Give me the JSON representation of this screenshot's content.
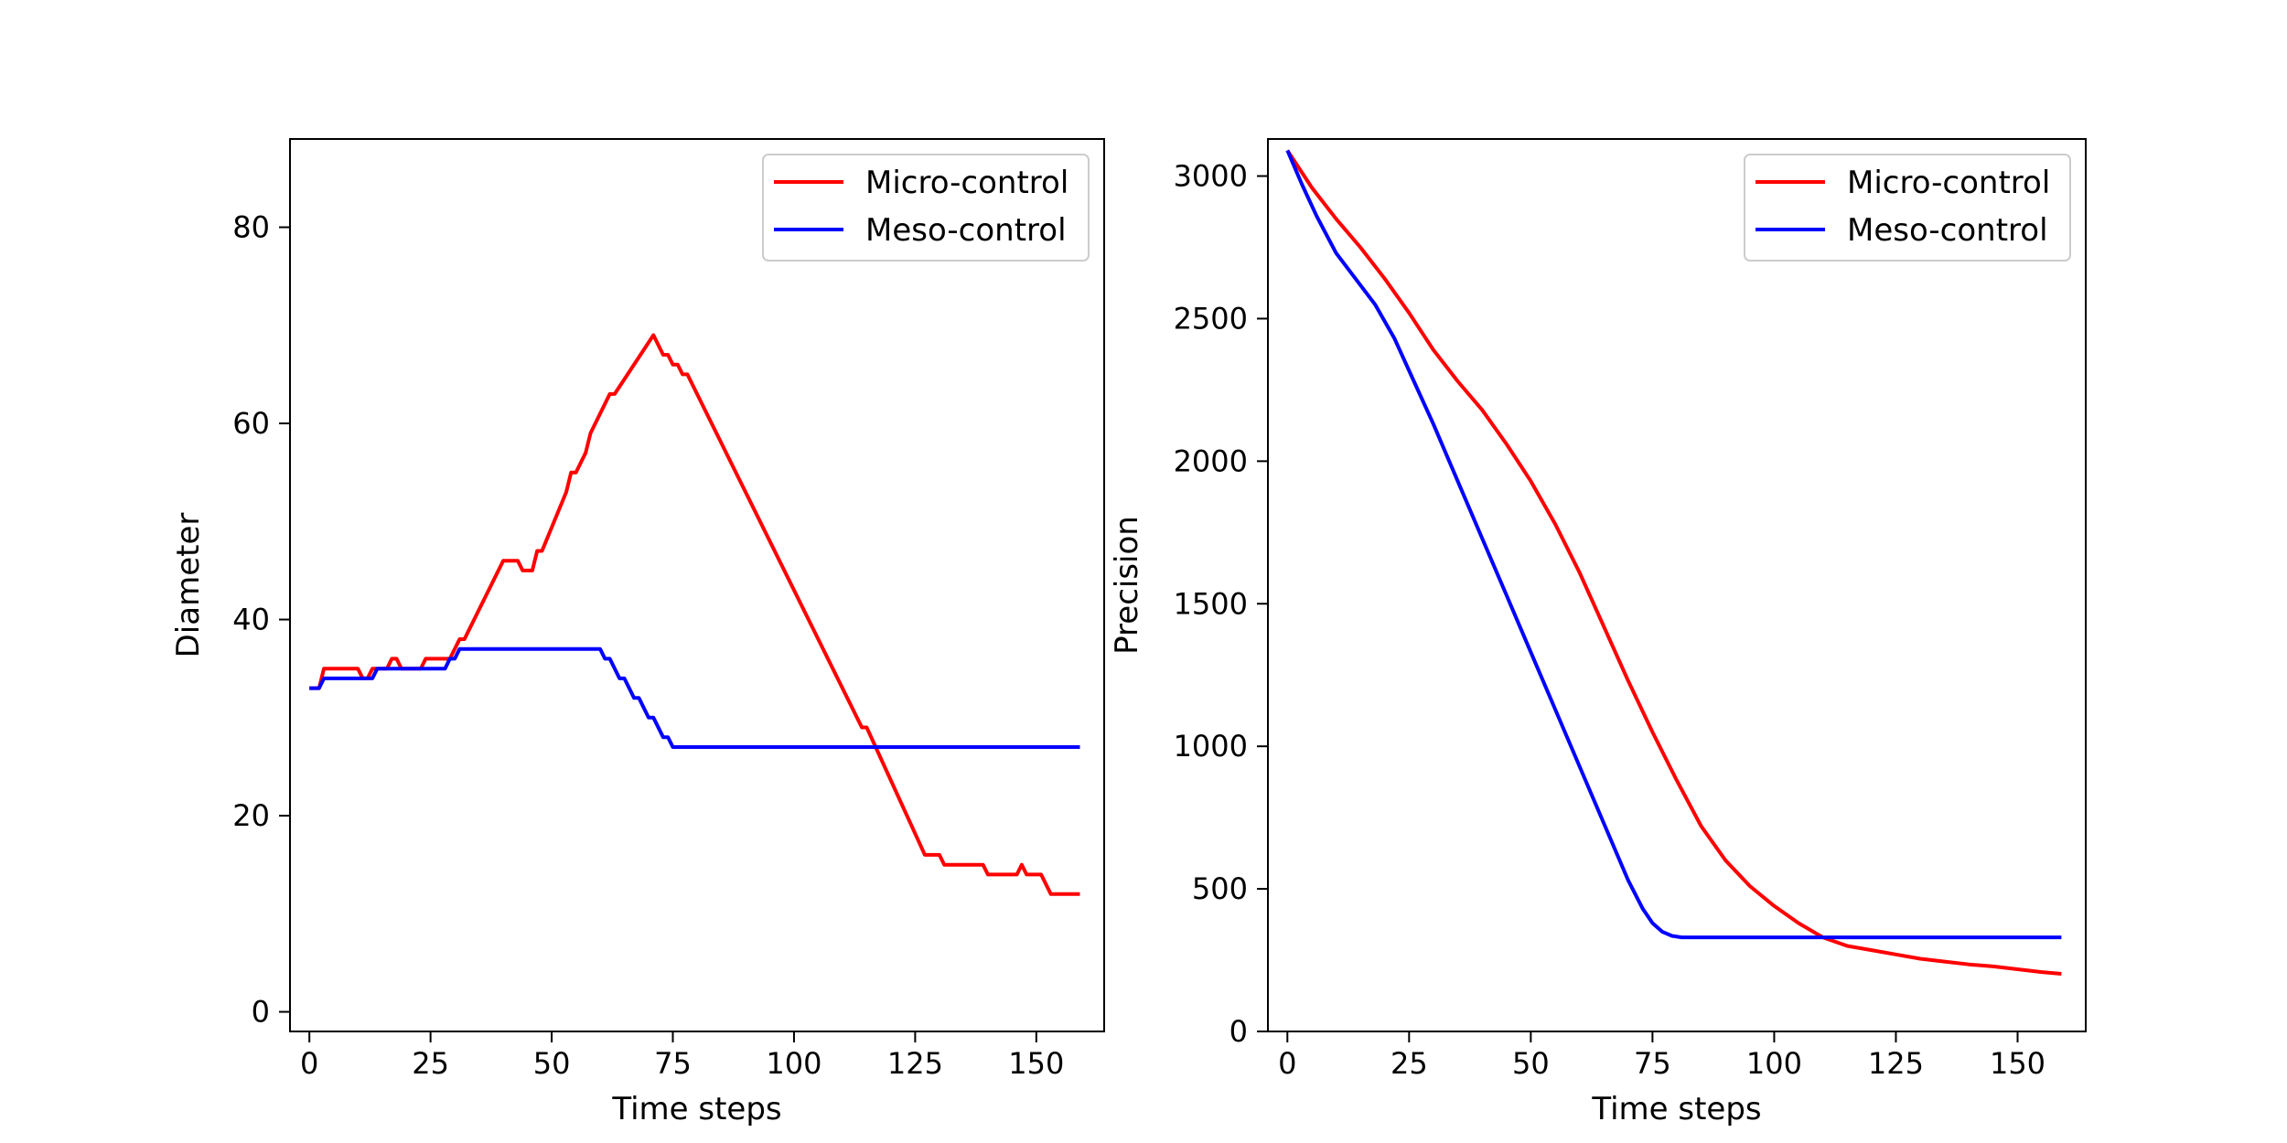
{
  "chart_data": [
    {
      "type": "line",
      "xlabel": "Time steps",
      "ylabel": "Diameter",
      "xlim": [
        -4,
        164
      ],
      "ylim": [
        -2,
        89
      ],
      "xticks": [
        0,
        25,
        50,
        75,
        100,
        125,
        150
      ],
      "yticks": [
        0,
        20,
        40,
        60,
        80
      ],
      "legend": {
        "placement": "top-right"
      },
      "grid": false,
      "series": [
        {
          "name": "Micro-control",
          "color": "#ff0000",
          "points": [
            [
              0,
              33
            ],
            [
              2,
              33
            ],
            [
              3,
              35
            ],
            [
              5,
              35
            ],
            [
              9,
              35
            ],
            [
              10,
              35
            ],
            [
              11,
              34
            ],
            [
              12,
              34
            ],
            [
              13,
              35
            ],
            [
              15,
              35
            ],
            [
              16,
              35
            ],
            [
              17,
              36
            ],
            [
              18,
              36
            ],
            [
              19,
              35
            ],
            [
              23,
              35
            ],
            [
              24,
              36
            ],
            [
              29,
              36
            ],
            [
              30,
              37
            ],
            [
              31,
              38
            ],
            [
              32,
              38
            ],
            [
              40,
              46
            ],
            [
              43,
              46
            ],
            [
              44,
              45
            ],
            [
              46,
              45
            ],
            [
              47,
              47
            ],
            [
              48,
              47
            ],
            [
              53,
              53
            ],
            [
              54,
              55
            ],
            [
              55,
              55
            ],
            [
              56,
              56
            ],
            [
              57,
              57
            ],
            [
              58,
              59
            ],
            [
              62,
              63
            ],
            [
              63,
              63
            ],
            [
              71,
              69
            ],
            [
              73,
              67
            ],
            [
              74,
              67
            ],
            [
              75,
              66
            ],
            [
              76,
              66
            ],
            [
              77,
              65
            ],
            [
              78,
              65
            ],
            [
              114,
              29
            ],
            [
              115,
              29
            ],
            [
              127,
              16
            ],
            [
              130,
              16
            ],
            [
              131,
              15
            ],
            [
              139,
              15
            ],
            [
              140,
              14
            ],
            [
              146,
              14
            ],
            [
              147,
              15
            ],
            [
              148,
              14
            ],
            [
              151,
              14
            ],
            [
              153,
              12
            ],
            [
              159,
              12
            ]
          ]
        },
        {
          "name": "Meso-control",
          "color": "#0000ff",
          "points": [
            [
              0,
              33
            ],
            [
              2,
              33
            ],
            [
              3,
              34
            ],
            [
              12,
              34
            ],
            [
              13,
              34
            ],
            [
              14,
              35
            ],
            [
              28,
              35
            ],
            [
              29,
              36
            ],
            [
              30,
              36
            ],
            [
              31,
              37
            ],
            [
              60,
              37
            ],
            [
              61,
              36
            ],
            [
              62,
              36
            ],
            [
              64,
              34
            ],
            [
              65,
              34
            ],
            [
              67,
              32
            ],
            [
              68,
              32
            ],
            [
              70,
              30
            ],
            [
              71,
              30
            ],
            [
              73,
              28
            ],
            [
              74,
              28
            ],
            [
              75,
              27
            ],
            [
              159,
              27
            ]
          ]
        }
      ]
    },
    {
      "type": "line",
      "xlabel": "Time steps",
      "ylabel": "Precision",
      "xlim": [
        -4,
        164
      ],
      "ylim": [
        0,
        3130
      ],
      "xticks": [
        0,
        25,
        50,
        75,
        100,
        125,
        150
      ],
      "yticks": [
        0,
        500,
        1000,
        1500,
        2000,
        2500,
        3000
      ],
      "legend": {
        "placement": "top-right"
      },
      "grid": false,
      "series": [
        {
          "name": "Micro-control",
          "color": "#ff0000",
          "points": [
            [
              0,
              3090
            ],
            [
              5,
              2960
            ],
            [
              10,
              2850
            ],
            [
              15,
              2750
            ],
            [
              20,
              2640
            ],
            [
              25,
              2520
            ],
            [
              30,
              2390
            ],
            [
              35,
              2280
            ],
            [
              40,
              2180
            ],
            [
              45,
              2060
            ],
            [
              50,
              1930
            ],
            [
              55,
              1780
            ],
            [
              60,
              1610
            ],
            [
              65,
              1420
            ],
            [
              70,
              1230
            ],
            [
              75,
              1050
            ],
            [
              80,
              880
            ],
            [
              85,
              720
            ],
            [
              90,
              600
            ],
            [
              95,
              510
            ],
            [
              100,
              440
            ],
            [
              105,
              380
            ],
            [
              110,
              330
            ],
            [
              115,
              300
            ],
            [
              120,
              285
            ],
            [
              125,
              270
            ],
            [
              130,
              255
            ],
            [
              135,
              245
            ],
            [
              140,
              235
            ],
            [
              145,
              228
            ],
            [
              150,
              218
            ],
            [
              155,
              208
            ],
            [
              159,
              202
            ]
          ]
        },
        {
          "name": "Meso-control",
          "color": "#0000ff",
          "points": [
            [
              0,
              3090
            ],
            [
              3,
              2970
            ],
            [
              6,
              2860
            ],
            [
              10,
              2730
            ],
            [
              14,
              2640
            ],
            [
              18,
              2550
            ],
            [
              22,
              2430
            ],
            [
              26,
              2280
            ],
            [
              30,
              2130
            ],
            [
              35,
              1930
            ],
            [
              40,
              1730
            ],
            [
              45,
              1530
            ],
            [
              50,
              1330
            ],
            [
              55,
              1130
            ],
            [
              60,
              930
            ],
            [
              65,
              730
            ],
            [
              70,
              530
            ],
            [
              73,
              430
            ],
            [
              75,
              380
            ],
            [
              77,
              350
            ],
            [
              79,
              335
            ],
            [
              81,
              330
            ],
            [
              159,
              330
            ]
          ]
        }
      ]
    }
  ]
}
